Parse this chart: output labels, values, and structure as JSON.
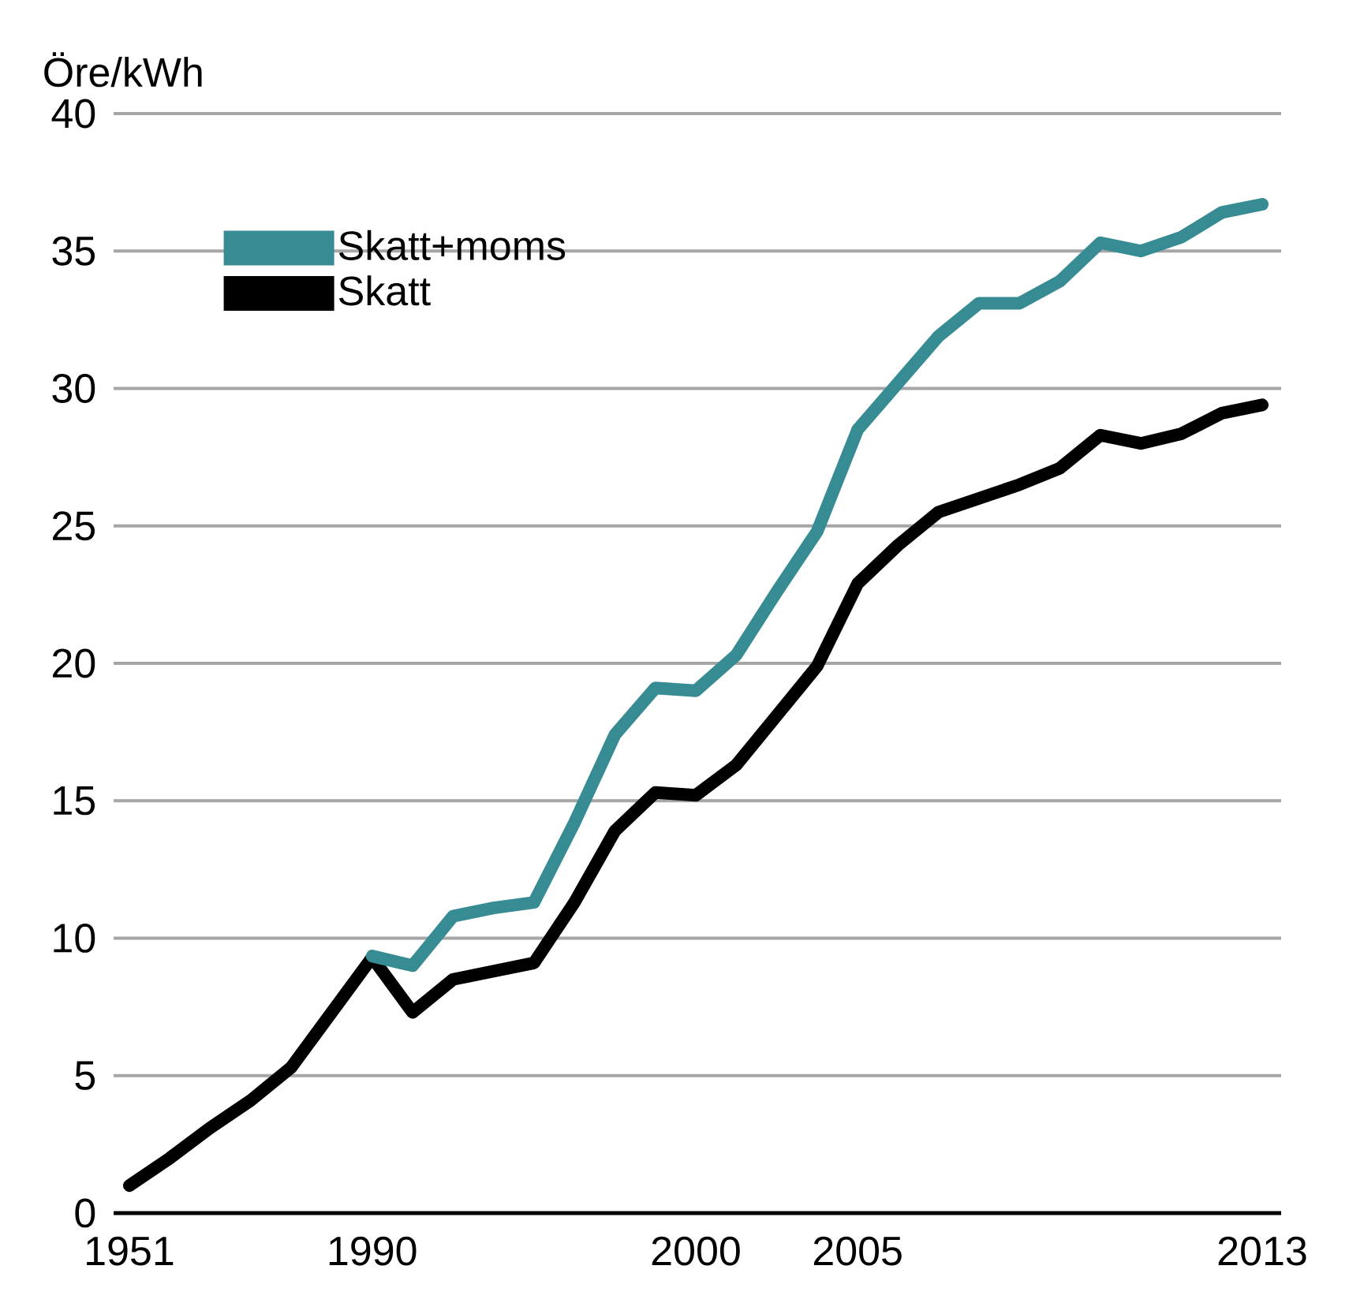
{
  "chart_data": {
    "type": "line",
    "ylabel": "Öre/kWh",
    "categories": [
      "1951",
      null,
      null,
      null,
      null,
      null,
      "1990",
      null,
      null,
      null,
      null,
      null,
      null,
      null,
      "2000",
      null,
      null,
      null,
      "2005",
      null,
      null,
      null,
      null,
      null,
      null,
      null,
      null,
      null,
      "2013"
    ],
    "series": [
      {
        "name": "Skatt+moms",
        "color": "#378c93",
        "values": [
          null,
          null,
          null,
          null,
          null,
          null,
          9.35,
          9.0,
          10.8,
          11.1,
          11.3,
          14.2,
          17.4,
          19.1,
          19.0,
          20.3,
          22.6,
          24.8,
          28.5,
          30.2,
          31.9,
          33.1,
          33.1,
          33.9,
          35.3,
          35.0,
          35.5,
          36.4,
          36.7
        ]
      },
      {
        "name": "Skatt",
        "color": "#000000",
        "values": [
          1.0,
          2.0,
          3.1,
          4.1,
          5.3,
          7.3,
          9.3,
          7.3,
          8.5,
          8.8,
          9.1,
          11.3,
          13.9,
          15.3,
          15.2,
          16.3,
          18.1,
          19.9,
          22.9,
          24.3,
          25.5,
          26.0,
          26.5,
          27.1,
          28.3,
          28.0,
          28.35,
          29.1,
          29.4
        ]
      }
    ],
    "ylim": [
      0,
      40
    ],
    "yticks": [
      0,
      5,
      10,
      15,
      20,
      25,
      30,
      35,
      40
    ],
    "grid": "y",
    "legend": "top left",
    "marker": "none",
    "line_style": "solid"
  }
}
